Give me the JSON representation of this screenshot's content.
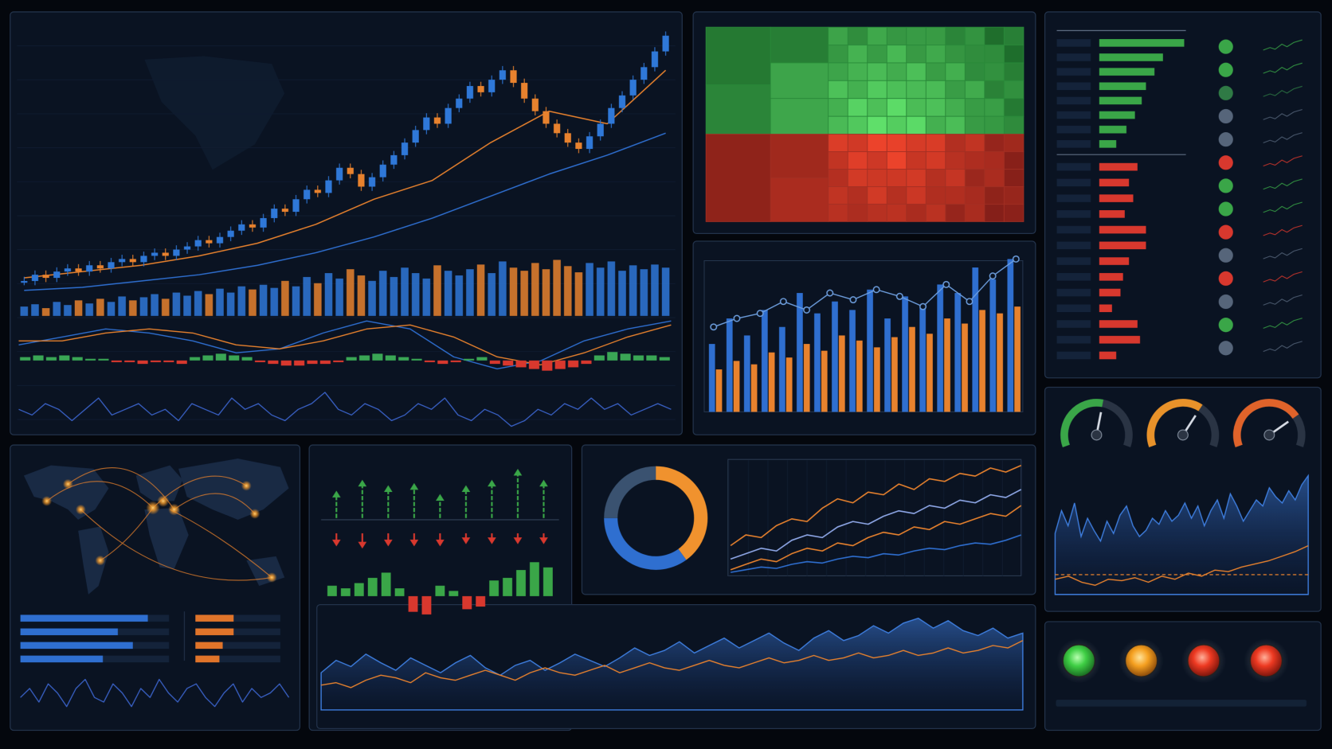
{
  "chart_data": [
    {
      "type": "candlestick",
      "values": [
        8,
        10,
        9,
        11,
        12,
        11,
        13,
        12,
        14,
        15,
        14,
        16,
        17,
        16,
        18,
        19,
        21,
        20,
        22,
        24,
        26,
        25,
        28,
        31,
        30,
        34,
        37,
        36,
        40,
        44,
        42,
        38,
        41,
        45,
        48,
        52,
        56,
        60,
        58,
        63,
        66,
        70,
        68,
        72,
        75,
        71,
        66,
        62,
        58,
        55,
        52,
        50,
        54,
        58,
        63,
        67,
        72,
        76,
        81,
        86
      ],
      "volumes": [
        12,
        15,
        10,
        18,
        14,
        20,
        16,
        22,
        18,
        25,
        20,
        24,
        28,
        22,
        30,
        26,
        32,
        28,
        35,
        30,
        38,
        34,
        40,
        36,
        45,
        38,
        50,
        42,
        55,
        48,
        60,
        52,
        45,
        58,
        50,
        62,
        55,
        48,
        65,
        58,
        52,
        60,
        66,
        55,
        70,
        62,
        58,
        68,
        60,
        72,
        64,
        56,
        68,
        62,
        70,
        58,
        65,
        60,
        66,
        62
      ],
      "up_color": "#2f78d8",
      "down_color": "#e8822e",
      "series": [
        {
          "color": "#e8822e",
          "values": [
            9,
            11,
            13,
            16,
            20,
            26,
            34,
            40,
            52,
            62,
            58,
            75
          ]
        },
        {
          "color": "#2f6fd0",
          "values": [
            5,
            6,
            8,
            10,
            13,
            17,
            22,
            28,
            35,
            42,
            48,
            55
          ]
        }
      ]
    },
    {
      "type": "oscillator",
      "series": [
        {
          "color": "#2f6fd0",
          "values": [
            0,
            2,
            4,
            3,
            1,
            -2,
            -1,
            3,
            6,
            4,
            -3,
            -6,
            -4,
            1,
            4,
            6
          ]
        },
        {
          "color": "#e8822e",
          "values": [
            1,
            1,
            3,
            4,
            3,
            0,
            -1,
            1,
            4,
            5,
            2,
            -3,
            -5,
            -2,
            2,
            5
          ]
        }
      ],
      "values": [
        2,
        3,
        2,
        3,
        2,
        1,
        1,
        -1,
        -1,
        -2,
        -1,
        -1,
        -2,
        2,
        3,
        4,
        3,
        2,
        -1,
        -2,
        -3,
        -3,
        -2,
        -2,
        -1,
        2,
        3,
        4,
        3,
        2,
        1,
        -1,
        -2,
        -1,
        1,
        2,
        -2,
        -3,
        -4,
        -5,
        -6,
        -5,
        -4,
        -2,
        3,
        5,
        4,
        3,
        3,
        2
      ],
      "pos_color": "#3aa655",
      "neg_color": "#d8382e"
    },
    {
      "type": "line",
      "color": "#3b63c9",
      "values": [
        5,
        4,
        6,
        5,
        3,
        5,
        7,
        4,
        5,
        6,
        4,
        5,
        3,
        6,
        5,
        4,
        7,
        5,
        6,
        4,
        3,
        5,
        6,
        8,
        5,
        4,
        6,
        5,
        3,
        4,
        6,
        5,
        7,
        4,
        3,
        5,
        4,
        2,
        3,
        5,
        4,
        6,
        5,
        7,
        5,
        6,
        4,
        5,
        6,
        5
      ]
    },
    {
      "type": "bar_line",
      "series": [
        {
          "color": "#2f6fd0",
          "values": [
            40,
            55,
            45,
            60,
            50,
            70,
            58,
            65,
            60,
            72,
            55,
            68,
            62,
            75,
            70,
            85,
            78,
            90
          ]
        },
        {
          "color": "#e8822e",
          "values": [
            25,
            30,
            28,
            35,
            32,
            40,
            36,
            45,
            42,
            38,
            44,
            50,
            46,
            55,
            52,
            60,
            58,
            62
          ]
        }
      ],
      "line": {
        "color": "#6fa0e0",
        "values": [
          50,
          55,
          58,
          65,
          60,
          70,
          66,
          72,
          68,
          62,
          75,
          65,
          80,
          90
        ]
      }
    },
    {
      "type": "ranked_bar",
      "series": [
        {
          "color": "#3aa648",
          "values": [
            100,
            75,
            65,
            55,
            50,
            42,
            32,
            20
          ]
        },
        {
          "color": "#d8382e",
          "values": [
            45,
            35,
            40,
            30,
            55,
            55,
            35,
            28,
            25,
            15,
            45,
            48,
            20
          ]
        }
      ],
      "status": [
        "#3aa648",
        "#3aa648",
        "#2f7a45",
        "#56657a",
        "#56657a",
        "#d8382e",
        "#3aa648",
        "#3aa648",
        "#d8382e",
        "#56657a",
        "#d8382e",
        "#56657a",
        "#3aa648",
        "#56657a"
      ]
    },
    {
      "type": "gauge",
      "values": [
        55,
        65,
        75
      ],
      "ylim": [
        0,
        100
      ],
      "colors": [
        "#3aa648",
        "#e8922a",
        "#e0632a"
      ]
    },
    {
      "type": "area",
      "color": "#3f7fe0",
      "values": [
        40,
        55,
        45,
        60,
        38,
        50,
        42,
        35,
        48,
        40,
        52,
        58,
        45,
        38,
        42,
        50,
        46,
        55,
        48,
        52,
        60,
        50,
        58,
        45,
        55,
        62,
        50,
        66,
        58,
        48,
        55,
        62,
        58,
        70,
        64,
        60,
        68,
        62,
        72,
        78
      ],
      "series": [
        {
          "color": "#e8822e",
          "values": [
            10,
            12,
            8,
            6,
            10,
            9,
            11,
            8,
            12,
            10,
            14,
            12,
            16,
            15,
            18,
            20,
            22,
            25,
            28,
            32
          ]
        }
      ],
      "ref": 13,
      "ref_color": "#e8822e"
    },
    {
      "type": "arrows",
      "up": [
        25,
        35,
        30,
        32,
        22,
        30,
        35,
        45,
        35
      ],
      "down": [
        12,
        14,
        12,
        12,
        12,
        10,
        10,
        10,
        10
      ],
      "values": [
        8,
        6,
        10,
        14,
        18,
        6,
        -12,
        -14,
        8,
        4,
        -10,
        -8,
        12,
        14,
        20,
        26,
        22
      ],
      "up_color": "#3aa648",
      "down_color": "#d8382e"
    },
    {
      "type": "donut",
      "values": [
        40,
        35,
        25
      ],
      "colors": [
        "#f0922e",
        "#2f6fd0",
        "#3a5270"
      ]
    },
    {
      "type": "multi_line",
      "series": [
        {
          "color": "#e8822e",
          "values": [
            20,
            28,
            26,
            35,
            40,
            38,
            48,
            55,
            52,
            60,
            58,
            66,
            62,
            70,
            68,
            74,
            72,
            78,
            75,
            80
          ]
        },
        {
          "color": "#8fa8e8",
          "values": [
            10,
            14,
            18,
            16,
            24,
            28,
            26,
            34,
            38,
            36,
            42,
            46,
            44,
            50,
            48,
            54,
            52,
            58,
            56,
            62
          ]
        },
        {
          "color": "#e8822e",
          "values": [
            2,
            6,
            10,
            8,
            14,
            18,
            16,
            22,
            20,
            26,
            30,
            28,
            34,
            32,
            38,
            36,
            40,
            44,
            42,
            50
          ]
        },
        {
          "color": "#2f6fd0",
          "values": [
            0,
            2,
            4,
            3,
            6,
            8,
            7,
            10,
            12,
            11,
            14,
            13,
            16,
            18,
            17,
            20,
            22,
            21,
            24,
            28
          ]
        }
      ]
    },
    {
      "type": "area",
      "color": "#3f7fe0",
      "values": [
        30,
        40,
        35,
        45,
        38,
        32,
        42,
        36,
        30,
        38,
        44,
        34,
        28,
        36,
        40,
        32,
        38,
        45,
        40,
        35,
        42,
        50,
        44,
        48,
        55,
        46,
        52,
        58,
        50,
        56,
        62,
        54,
        48,
        58,
        64,
        56,
        60,
        68,
        62,
        70,
        74,
        66,
        72,
        64,
        60,
        66,
        58,
        62
      ],
      "series": [
        {
          "color": "#e8822e",
          "values": [
            20,
            22,
            18,
            24,
            28,
            26,
            22,
            30,
            26,
            24,
            28,
            32,
            28,
            24,
            30,
            34,
            30,
            28,
            32,
            36,
            30,
            34,
            38,
            34,
            32,
            36,
            40,
            36,
            34,
            38,
            42,
            38,
            40,
            44,
            40,
            42,
            46,
            42,
            44,
            48,
            44,
            46,
            50,
            46,
            48,
            52,
            50,
            56
          ]
        }
      ]
    },
    {
      "type": "hbar",
      "series": [
        {
          "color": "#2f6fd0",
          "values": [
            85,
            65,
            75,
            55
          ]
        },
        {
          "color": "#e0742a",
          "values": [
            35,
            35,
            25,
            22
          ]
        }
      ],
      "line": {
        "color": "#3b63c9",
        "values": [
          4,
          6,
          3,
          7,
          5,
          2,
          6,
          8,
          4,
          3,
          7,
          5,
          2,
          6,
          4,
          8,
          5,
          3,
          6,
          7,
          4,
          2,
          5,
          7,
          3,
          6,
          4,
          5,
          7,
          4
        ]
      }
    }
  ]
}
